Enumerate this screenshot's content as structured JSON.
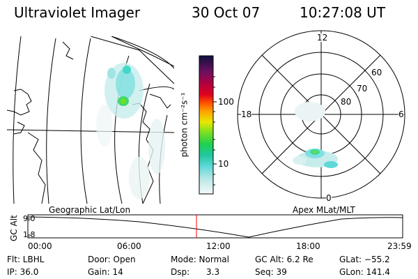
{
  "header": {
    "instrument": "Ultraviolet Imager",
    "date": "30 Oct 07",
    "time": "10:27:08 UT"
  },
  "colorbar": {
    "unit_label": "photon cm⁻²s⁻¹",
    "ticks": [
      "100",
      "10"
    ]
  },
  "polar_plot": {
    "mlt_labels": [
      "12",
      "18",
      "6",
      "0"
    ],
    "mlat_labels": [
      "60",
      "70",
      "80"
    ],
    "title": "Apex MLat/MLT"
  },
  "geo_plot": {
    "title": "Geographic Lat/Lon"
  },
  "altitude_plot": {
    "ylabel": "GC Alt",
    "y_ticks": [
      "9.0",
      "1.8"
    ],
    "x_ticks": [
      "00:00",
      "06:00",
      "12:00",
      "18:00",
      "23:59"
    ],
    "marker_time": "10:27"
  },
  "info": {
    "filter": "Flt: LBHL",
    "ip": "IP: 36.0",
    "door": "Door: Open",
    "gain": "Gain: 14",
    "mode": "Mode: Normal",
    "dsp_label": "Dsp:",
    "dsp_value": "3.3",
    "gc_alt": "GC Alt: 6.2 Re",
    "seq": "Seq: 39",
    "glat": "GLat: −55.2",
    "glon": "GLon: 141.4"
  },
  "colors": {
    "marker": "#ff0000",
    "colorscale": [
      "#e8f4f4",
      "#c0e8e8",
      "#80e0e0",
      "#40d8c8",
      "#20d070",
      "#70e020",
      "#e0e000",
      "#ffa000",
      "#ff3000",
      "#d00020",
      "#900050",
      "#4a1060",
      "#101040"
    ]
  }
}
